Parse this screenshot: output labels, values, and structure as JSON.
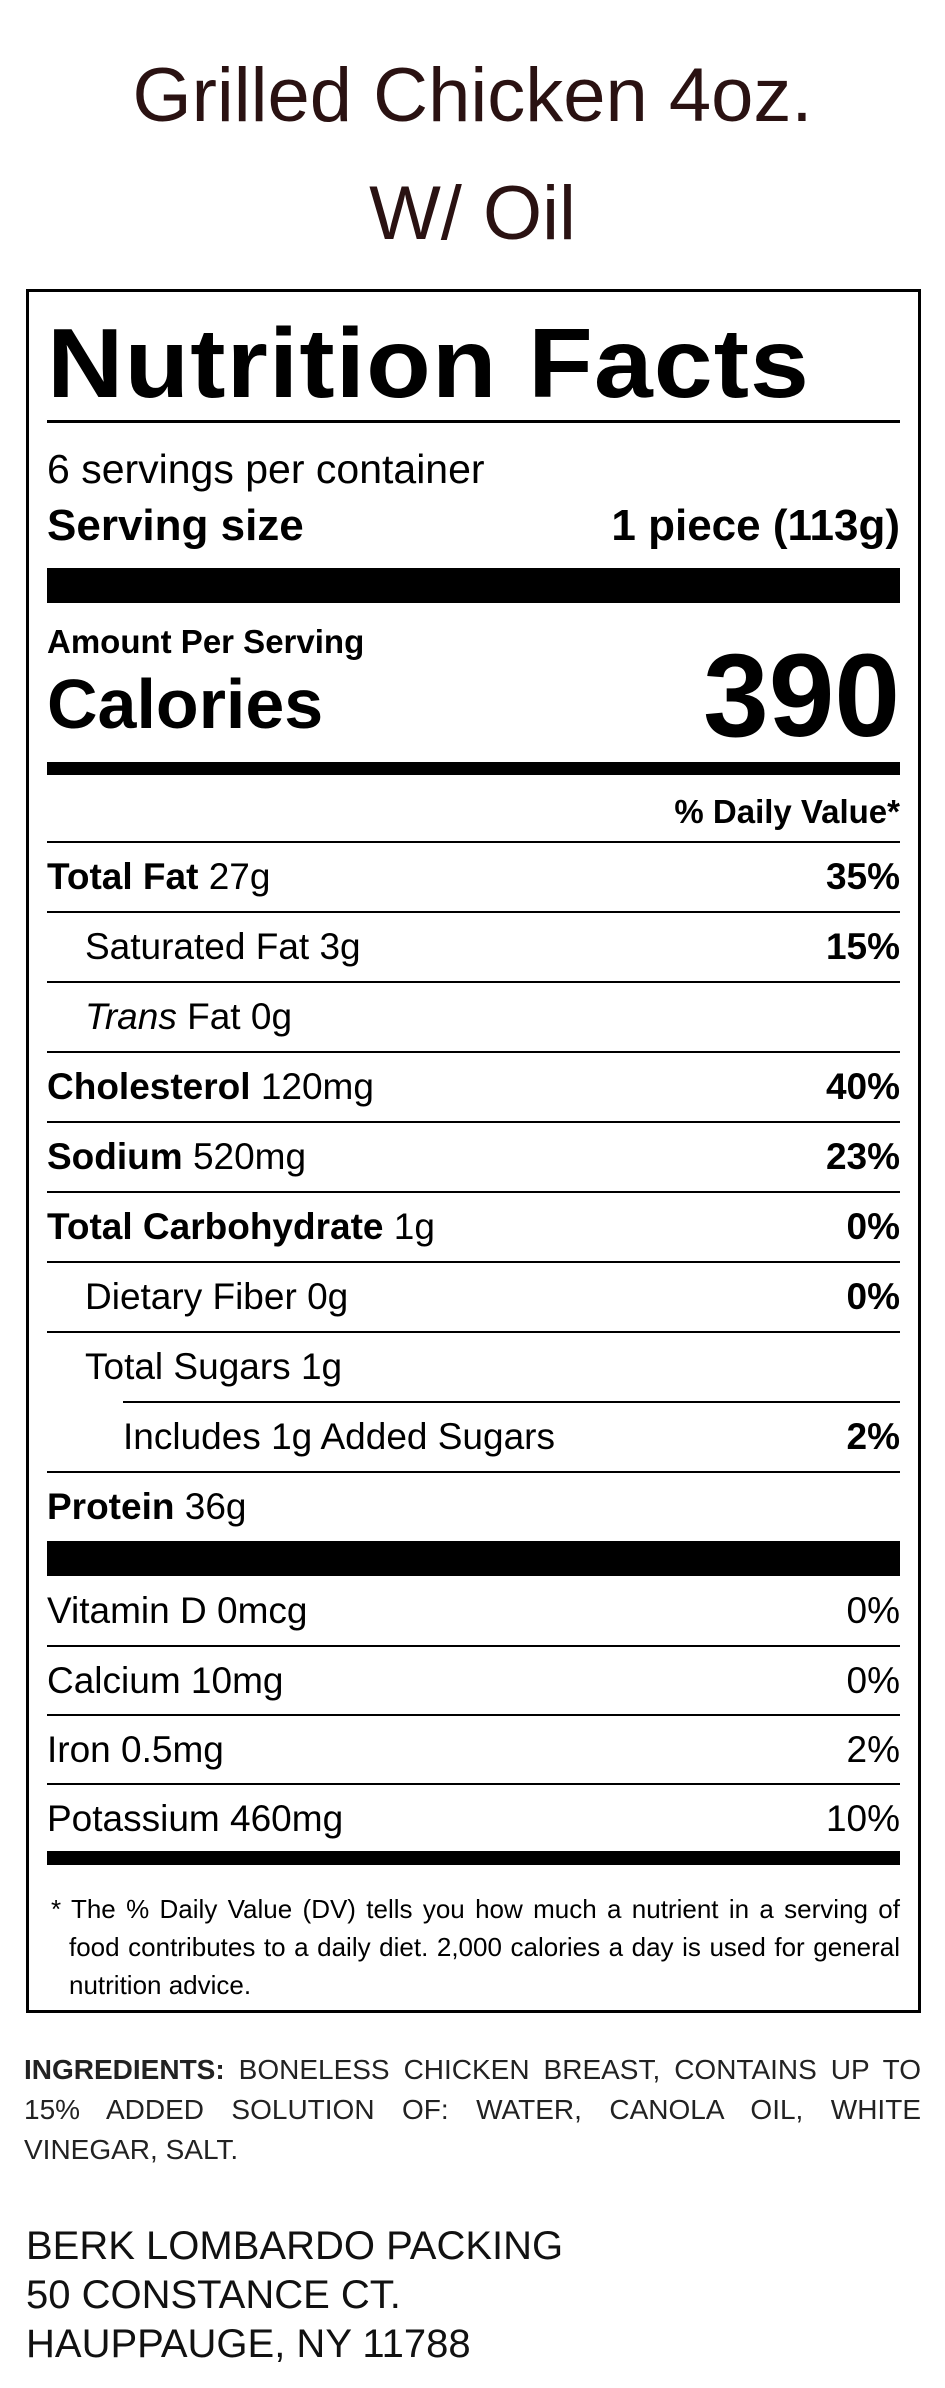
{
  "product": {
    "title_line1": "Grilled Chicken 4oz.",
    "title_line2": "W/ Oil"
  },
  "label": {
    "heading": "Nutrition Facts",
    "servings_per_container": "6 servings per container",
    "serving_size_label": "Serving size",
    "serving_size_value": "1 piece (113g)",
    "amount_per_serving": "Amount Per Serving",
    "calories_label": "Calories",
    "calories_value": "390",
    "dv_header": "% Daily Value*",
    "nutrients": [
      {
        "name": "Total Fat",
        "amount": "27g",
        "dv": "35%",
        "bold": true,
        "indent": 0
      },
      {
        "name": "Saturated Fat",
        "amount": "3g",
        "dv": "15%",
        "bold": false,
        "indent": 1
      },
      {
        "name": "Trans",
        "name_suffix": "Fat",
        "amount": "0g",
        "dv": "",
        "bold": false,
        "indent": 1
      },
      {
        "name": "Cholesterol",
        "amount": "120mg",
        "dv": "40%",
        "bold": true,
        "indent": 0
      },
      {
        "name": "Sodium",
        "amount": "520mg",
        "dv": "23%",
        "bold": true,
        "indent": 0
      },
      {
        "name": "Total Carbohydrate",
        "amount": "1g",
        "dv": "0%",
        "bold": true,
        "indent": 0
      },
      {
        "name": "Dietary Fiber",
        "amount": "0g",
        "dv": "0%",
        "bold": false,
        "indent": 1
      },
      {
        "name": "Total Sugars",
        "amount": "1g",
        "dv": "",
        "bold": false,
        "indent": 1
      },
      {
        "name": "Includes 1g Added Sugars",
        "amount": "",
        "dv": "2%",
        "bold": false,
        "indent": 2
      },
      {
        "name": "Protein",
        "amount": "36g",
        "dv": "",
        "bold": true,
        "indent": 0
      }
    ],
    "vitamins": [
      {
        "name": "Vitamin D",
        "amount": "0mcg",
        "dv": "0%"
      },
      {
        "name": "Calcium",
        "amount": "10mg",
        "dv": "0%"
      },
      {
        "name": "Iron",
        "amount": "0.5mg",
        "dv": "2%"
      },
      {
        "name": "Potassium",
        "amount": "460mg",
        "dv": "10%"
      }
    ],
    "footnote": "* The % Daily Value (DV) tells you how much a nutrient in a serving of food contributes to a daily diet. 2,000 calories a day is used for general nutrition advice."
  },
  "ingredients": {
    "label": "INGREDIENTS:",
    "text": "BONELESS CHICKEN BREAST, CONTAINS UP TO 15% ADDED SOLUTION OF: WATER, CANOLA OIL, WHITE VINEGAR, SALT."
  },
  "manufacturer": {
    "name": "BERK LOMBARDO PACKING",
    "street": "50 CONSTANCE CT.",
    "city": "HAUPPAUGE, NY 11788"
  }
}
